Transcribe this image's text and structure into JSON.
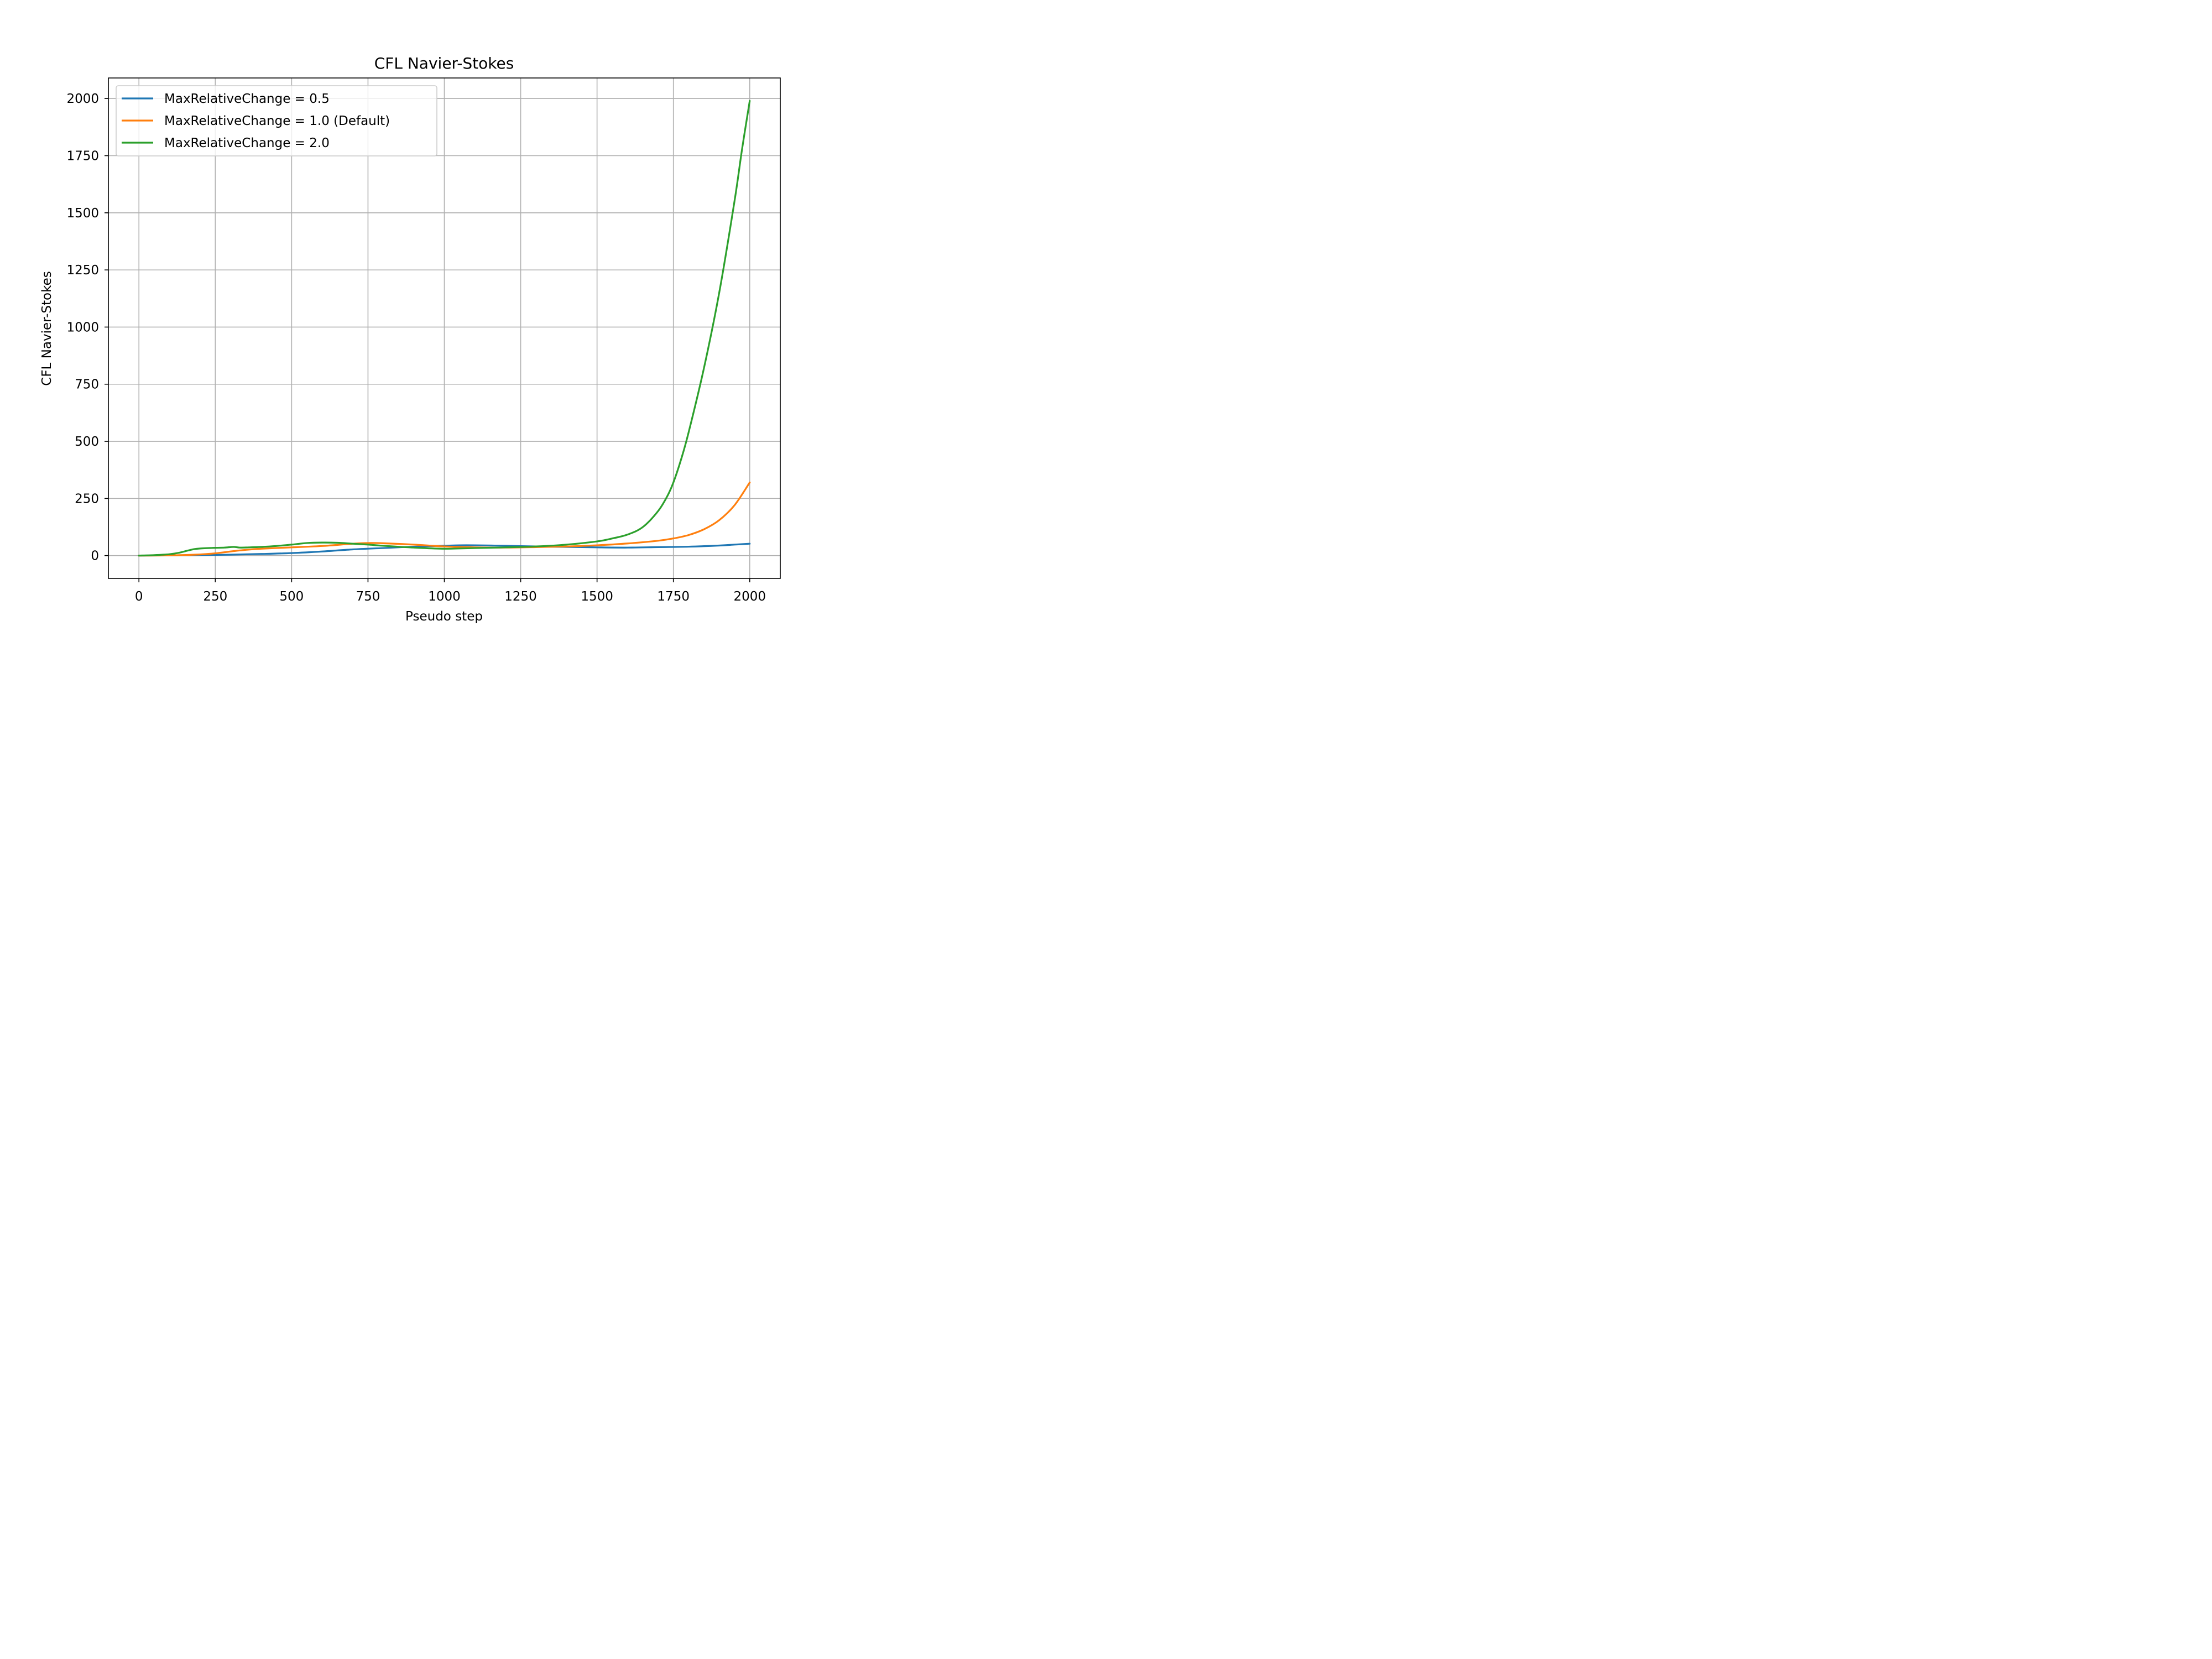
{
  "chart_data": {
    "type": "line",
    "title": "CFL Navier-Stokes",
    "xlabel": "Pseudo step",
    "ylabel": "CFL Navier-Stokes",
    "xlim": [
      -100,
      2100
    ],
    "ylim": [
      -100,
      2090
    ],
    "xticks": [
      0,
      250,
      500,
      750,
      1000,
      1250,
      1500,
      1750,
      2000
    ],
    "yticks": [
      0,
      250,
      500,
      750,
      1000,
      1250,
      1500,
      1750,
      2000
    ],
    "grid": true,
    "legend_position": "top-left",
    "series": [
      {
        "name": "MaxRelativeChange = 0.5",
        "color": "#1f77b4",
        "points": [
          [
            0,
            0
          ],
          [
            100,
            1
          ],
          [
            200,
            2
          ],
          [
            300,
            4
          ],
          [
            400,
            7
          ],
          [
            500,
            11
          ],
          [
            600,
            18
          ],
          [
            700,
            27
          ],
          [
            800,
            33
          ],
          [
            900,
            39
          ],
          [
            1000,
            43
          ],
          [
            1050,
            45
          ],
          [
            1100,
            45
          ],
          [
            1200,
            43
          ],
          [
            1300,
            40
          ],
          [
            1400,
            38
          ],
          [
            1500,
            36
          ],
          [
            1600,
            35
          ],
          [
            1700,
            37
          ],
          [
            1800,
            39
          ],
          [
            1900,
            44
          ],
          [
            1950,
            48
          ],
          [
            2000,
            52
          ]
        ]
      },
      {
        "name": "MaxRelativeChange = 1.0 (Default)",
        "color": "#ff7f0e",
        "points": [
          [
            0,
            0
          ],
          [
            100,
            1
          ],
          [
            200,
            5
          ],
          [
            250,
            10
          ],
          [
            300,
            18
          ],
          [
            350,
            25
          ],
          [
            400,
            30
          ],
          [
            500,
            36
          ],
          [
            600,
            42
          ],
          [
            700,
            52
          ],
          [
            750,
            55
          ],
          [
            800,
            54
          ],
          [
            900,
            48
          ],
          [
            1000,
            40
          ],
          [
            1100,
            36
          ],
          [
            1200,
            35
          ],
          [
            1300,
            37
          ],
          [
            1400,
            40
          ],
          [
            1500,
            45
          ],
          [
            1600,
            53
          ],
          [
            1700,
            65
          ],
          [
            1750,
            75
          ],
          [
            1800,
            90
          ],
          [
            1850,
            115
          ],
          [
            1900,
            155
          ],
          [
            1950,
            220
          ],
          [
            2000,
            320
          ]
        ]
      },
      {
        "name": "MaxRelativeChange = 2.0",
        "color": "#2ca02c",
        "points": [
          [
            0,
            0
          ],
          [
            50,
            2
          ],
          [
            100,
            6
          ],
          [
            130,
            12
          ],
          [
            160,
            22
          ],
          [
            180,
            28
          ],
          [
            200,
            31
          ],
          [
            250,
            34
          ],
          [
            280,
            35
          ],
          [
            310,
            38
          ],
          [
            330,
            35
          ],
          [
            360,
            36
          ],
          [
            400,
            38
          ],
          [
            450,
            42
          ],
          [
            500,
            48
          ],
          [
            550,
            55
          ],
          [
            600,
            57
          ],
          [
            650,
            56
          ],
          [
            700,
            52
          ],
          [
            750,
            48
          ],
          [
            800,
            43
          ],
          [
            900,
            35
          ],
          [
            1000,
            30
          ],
          [
            1100,
            33
          ],
          [
            1200,
            36
          ],
          [
            1300,
            40
          ],
          [
            1400,
            48
          ],
          [
            1500,
            62
          ],
          [
            1550,
            75
          ],
          [
            1600,
            92
          ],
          [
            1650,
            125
          ],
          [
            1700,
            195
          ],
          [
            1730,
            260
          ],
          [
            1750,
            320
          ],
          [
            1775,
            420
          ],
          [
            1800,
            540
          ],
          [
            1850,
            820
          ],
          [
            1900,
            1150
          ],
          [
            1950,
            1550
          ],
          [
            1975,
            1780
          ],
          [
            2000,
            1990
          ]
        ]
      }
    ]
  }
}
